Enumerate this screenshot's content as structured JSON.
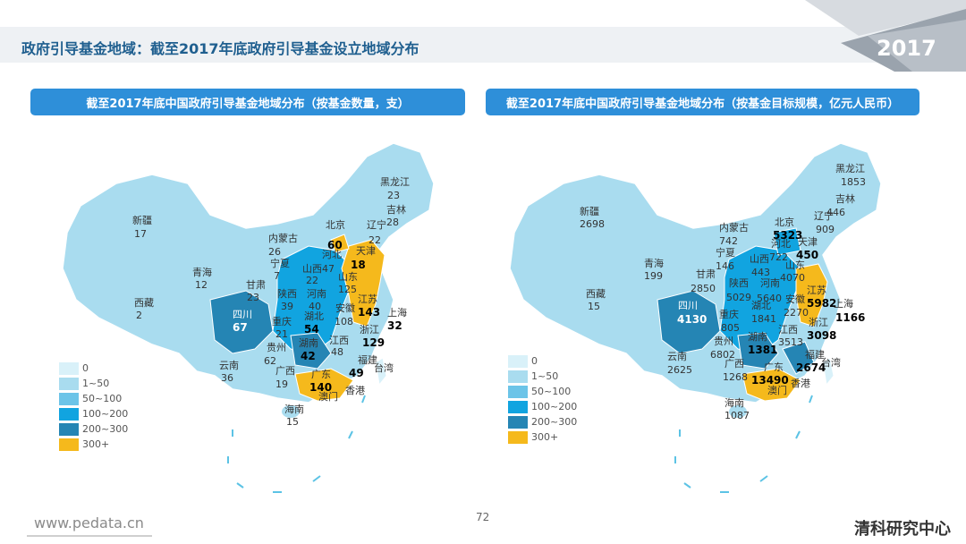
{
  "header": {
    "title": "政府引导基金地域：截至2017年底政府引导基金设立地域分布",
    "year": "2017"
  },
  "colors": {
    "c0": "#d9f1f9",
    "c1": "#a9dcef",
    "c2": "#6cc4e8",
    "c3": "#11a4e0",
    "c4": "#2585b4",
    "c5": "#f5b91c"
  },
  "legend": [
    "0",
    "1~50",
    "50~100",
    "100~200",
    "200~300",
    "300+"
  ],
  "left_panel": {
    "title": "截至2017年底中国政府引导基金地域分布（按基金数量，支）",
    "provinces": [
      {
        "name": "新疆",
        "value": "17"
      },
      {
        "name": "西藏",
        "value": "2"
      },
      {
        "name": "青海",
        "value": "12"
      },
      {
        "name": "内蒙古",
        "value": "26"
      },
      {
        "name": "宁夏",
        "value": "7"
      },
      {
        "name": "甘肃",
        "value": "23"
      },
      {
        "name": "陕西",
        "value": "39"
      },
      {
        "name": "四川",
        "value": "67"
      },
      {
        "name": "重庆",
        "value": "21"
      },
      {
        "name": "云南",
        "value": "36"
      },
      {
        "name": "贵州",
        "value": "62"
      },
      {
        "name": "广西",
        "value": "19"
      },
      {
        "name": "海南",
        "value": "15"
      },
      {
        "name": "广东",
        "value": "140"
      },
      {
        "name": "澳门",
        "value": ""
      },
      {
        "name": "香港",
        "value": ""
      },
      {
        "name": "台湾",
        "value": ""
      },
      {
        "name": "福建",
        "value": "49"
      },
      {
        "name": "江西",
        "value": "48"
      },
      {
        "name": "湖南",
        "value": "42"
      },
      {
        "name": "湖北",
        "value": "54"
      },
      {
        "name": "河南",
        "value": "40"
      },
      {
        "name": "山西",
        "value": "47"
      },
      {
        "name": "河北",
        "value": "22"
      },
      {
        "name": "北京",
        "value": "60"
      },
      {
        "name": "天津",
        "value": "18"
      },
      {
        "name": "山东",
        "value": "125"
      },
      {
        "name": "江苏",
        "value": "143"
      },
      {
        "name": "安徽",
        "value": "108"
      },
      {
        "name": "上海",
        "value": "32"
      },
      {
        "name": "浙江",
        "value": "129"
      },
      {
        "name": "辽宁",
        "value": "22"
      },
      {
        "name": "吉林",
        "value": "28"
      },
      {
        "name": "黑龙江",
        "value": "23"
      }
    ]
  },
  "right_panel": {
    "title": "截至2017年底中国政府引导基金地域分布（按基金目标规模，亿元人民币）",
    "provinces": [
      {
        "name": "新疆",
        "value": "2698"
      },
      {
        "name": "西藏",
        "value": "15"
      },
      {
        "name": "青海",
        "value": "199"
      },
      {
        "name": "内蒙古",
        "value": "742"
      },
      {
        "name": "宁夏",
        "value": "146"
      },
      {
        "name": "甘肃",
        "value": "2850"
      },
      {
        "name": "陕西",
        "value": "5029"
      },
      {
        "name": "四川",
        "value": "4130"
      },
      {
        "name": "重庆",
        "value": "805"
      },
      {
        "name": "云南",
        "value": "2625"
      },
      {
        "name": "贵州",
        "value": "6802"
      },
      {
        "name": "广西",
        "value": "1268"
      },
      {
        "name": "海南",
        "value": "1087"
      },
      {
        "name": "广东",
        "value": "13490"
      },
      {
        "name": "澳门",
        "value": ""
      },
      {
        "name": "香港",
        "value": ""
      },
      {
        "name": "台湾",
        "value": ""
      },
      {
        "name": "福建",
        "value": "2674"
      },
      {
        "name": "江西",
        "value": "3513"
      },
      {
        "name": "湖南",
        "value": "1381"
      },
      {
        "name": "湖北",
        "value": "1841"
      },
      {
        "name": "河南",
        "value": "5640"
      },
      {
        "name": "山西",
        "value": "443"
      },
      {
        "name": "河北",
        "value": "722"
      },
      {
        "name": "北京",
        "value": "5323"
      },
      {
        "name": "天津",
        "value": "450"
      },
      {
        "name": "山东",
        "value": "4070"
      },
      {
        "name": "江苏",
        "value": "5982"
      },
      {
        "name": "安徽",
        "value": "2270"
      },
      {
        "name": "上海",
        "value": "1166"
      },
      {
        "name": "浙江",
        "value": "3098"
      },
      {
        "name": "辽宁",
        "value": "909"
      },
      {
        "name": "吉林",
        "value": "446"
      },
      {
        "name": "黑龙江",
        "value": "1853"
      }
    ]
  },
  "footer": {
    "url": "www.pedata.cn",
    "page": "72",
    "logo": "清科研究中心"
  }
}
